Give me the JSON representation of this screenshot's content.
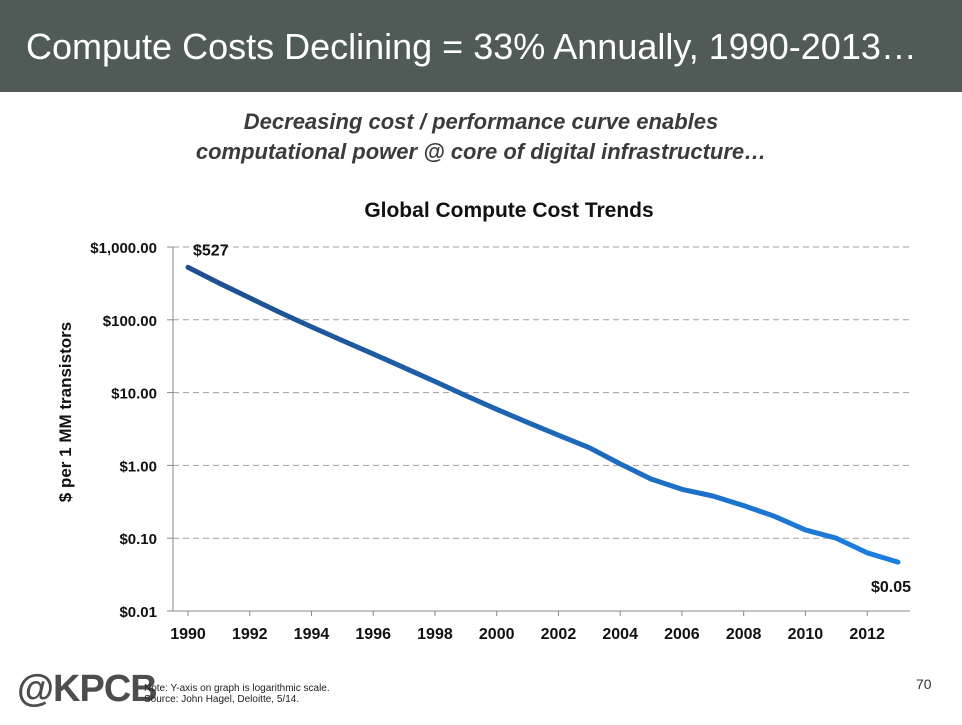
{
  "slide": {
    "title": "Compute Costs Declining = 33% Annually, 1990-2013…",
    "subtitle_line1": "Decreasing cost / performance curve enables",
    "subtitle_line2": "computational power @ core of digital infrastructure…",
    "logo": "@KPCB",
    "note_line1": "Note: Y-axis on graph is logarithmic scale.",
    "note_line2": "Source: John Hagel, Deloitte, 5/14.",
    "page_number": "70",
    "colors": {
      "title_bar": "#505b57",
      "line_start": "#1f4e8c",
      "line_end": "#1b7fe0"
    }
  },
  "chart_data": {
    "type": "line",
    "title": "Global Compute Cost Trends",
    "xlabel": "",
    "ylabel": "$ per 1 MM transistors",
    "y_scale": "log",
    "ylim": [
      0.01,
      1000
    ],
    "xlim": [
      1990,
      2013
    ],
    "grid": true,
    "y_ticks": [
      {
        "value": 1000,
        "label": "$1,000.00"
      },
      {
        "value": 100,
        "label": "$100.00"
      },
      {
        "value": 10,
        "label": "$10.00"
      },
      {
        "value": 1,
        "label": "$1.00"
      },
      {
        "value": 0.1,
        "label": "$0.10"
      },
      {
        "value": 0.01,
        "label": "$0.01"
      }
    ],
    "x_ticks": [
      "1990",
      "1992",
      "1994",
      "1996",
      "1998",
      "2000",
      "2002",
      "2004",
      "2006",
      "2008",
      "2010",
      "2012"
    ],
    "series": [
      {
        "x": [
          1990,
          1991,
          1992,
          1993,
          1994,
          1995,
          1996,
          1997,
          1998,
          1999,
          2000,
          2001,
          2002,
          2003,
          2004,
          2005,
          2006,
          2007,
          2008,
          2009,
          2010,
          2011,
          2012,
          2013
        ],
        "y": [
          527,
          320,
          200,
          125,
          80,
          52,
          34,
          22,
          14.2,
          9.1,
          5.9,
          3.9,
          2.6,
          1.75,
          1.05,
          0.65,
          0.47,
          0.38,
          0.28,
          0.2,
          0.13,
          0.1,
          0.063,
          0.047
        ]
      }
    ],
    "annotations": [
      {
        "x": 1990,
        "y": 527,
        "text": "$527"
      },
      {
        "x": 2013,
        "y": 0.047,
        "text": "$0.05"
      }
    ]
  }
}
